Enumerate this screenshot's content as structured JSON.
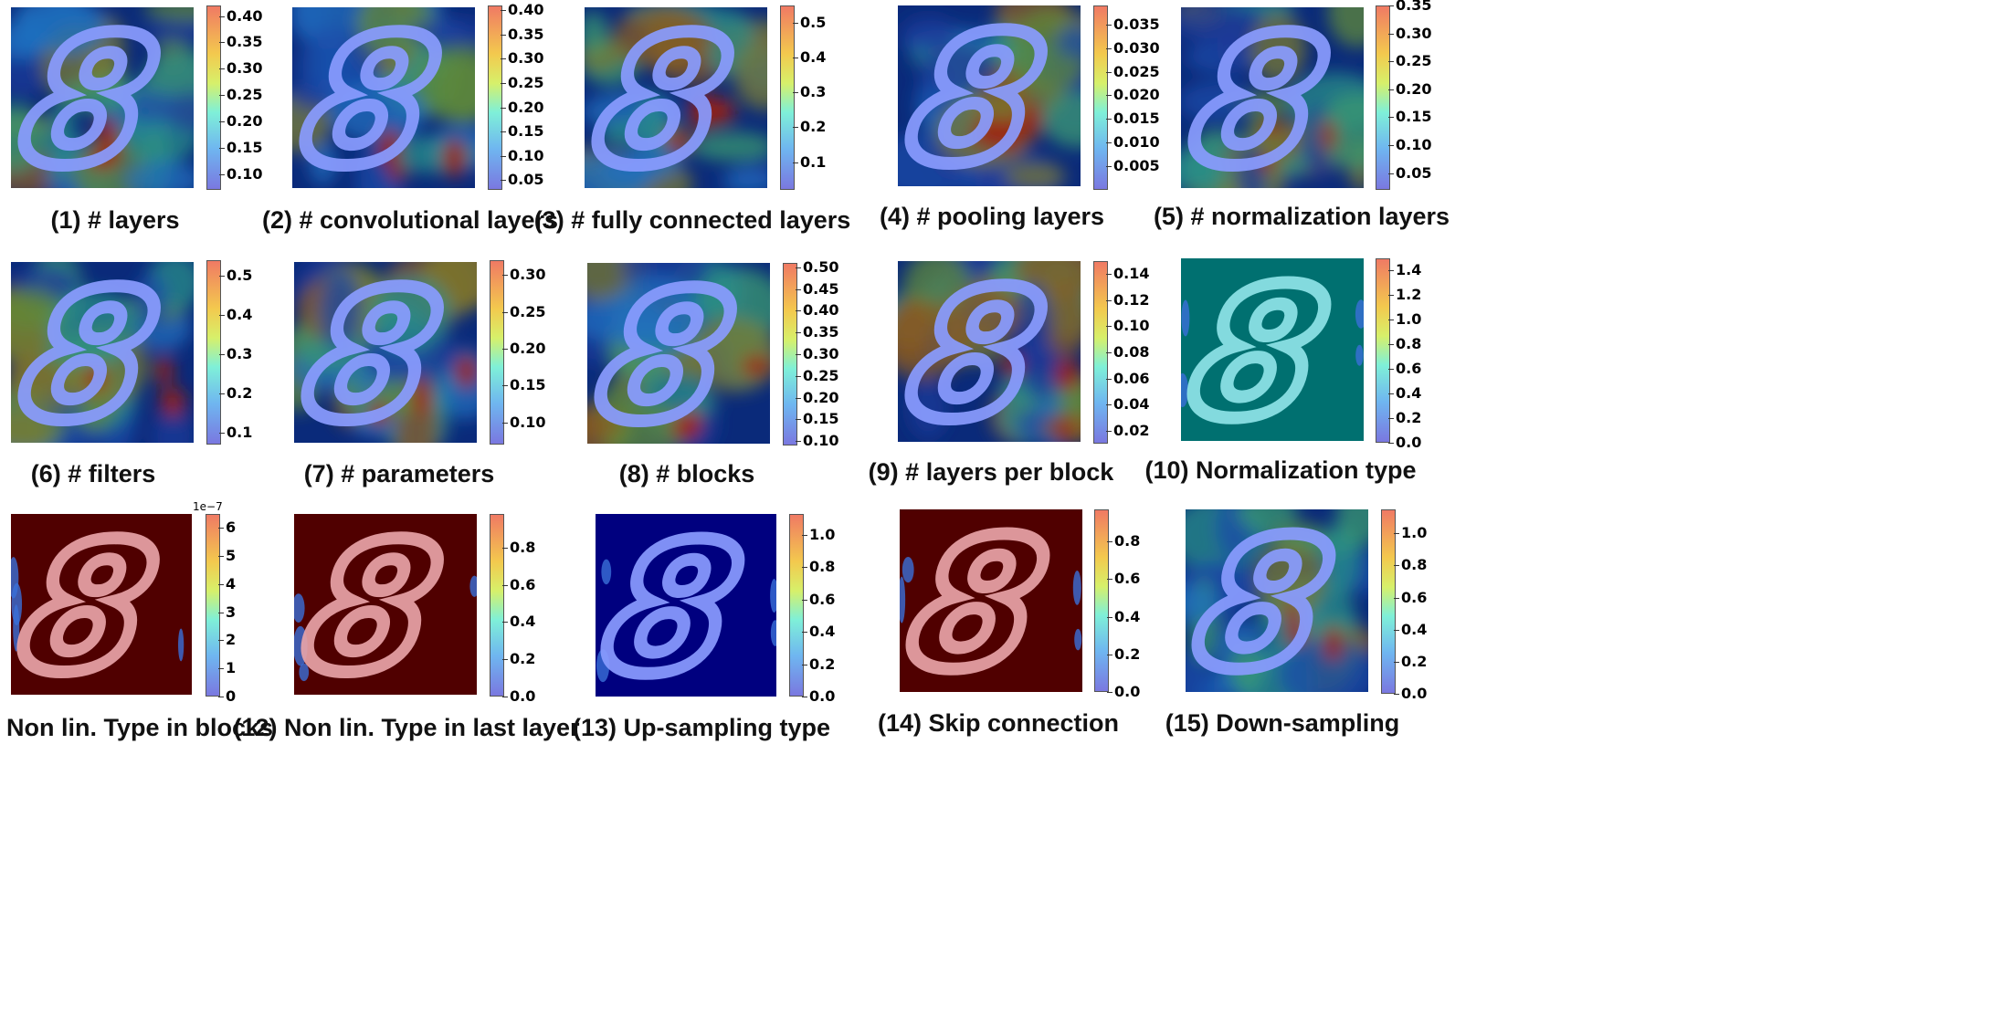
{
  "colors": {
    "jet_dark_blue": "#00007f",
    "jet_teal": "#007070",
    "jet_dark_red": "#500000",
    "digit_overlay_blue": "#8a9cff",
    "digit_overlay_pink": "#e8a3a8",
    "colorbar_stops": [
      "#7a78e0",
      "#6fb6f0",
      "#7ff0d8",
      "#d7f06a",
      "#f3c94e",
      "#f07a64"
    ]
  },
  "panels": [
    {
      "caption": "(1) # layers",
      "ticks": [
        "0.40",
        "0.35",
        "0.30",
        "0.25",
        "0.20",
        "0.15",
        "0.10"
      ],
      "range": [
        0.07,
        0.42
      ],
      "background": "jet-mixed",
      "digit": "blue"
    },
    {
      "caption": "(2) # convolutional layers",
      "ticks": [
        "0.40",
        "0.35",
        "0.30",
        "0.25",
        "0.20",
        "0.15",
        "0.10",
        "0.05"
      ],
      "range": [
        0.03,
        0.41
      ],
      "background": "jet-mixed",
      "digit": "blue"
    },
    {
      "caption": "(3) # fully connected layers",
      "ticks": [
        "0.5",
        "0.4",
        "0.3",
        "0.2",
        "0.1"
      ],
      "range": [
        0.02,
        0.55
      ],
      "background": "jet-mixed",
      "digit": "blue"
    },
    {
      "caption": "(4) # pooling layers",
      "ticks": [
        "0.035",
        "0.030",
        "0.025",
        "0.020",
        "0.015",
        "0.010",
        "0.005"
      ],
      "range": [
        0.0,
        0.039
      ],
      "background": "jet-mixed",
      "digit": "blue"
    },
    {
      "caption": "(5) # normalization layers",
      "ticks": [
        "0.35",
        "0.30",
        "0.25",
        "0.20",
        "0.15",
        "0.10",
        "0.05"
      ],
      "range": [
        0.02,
        0.35
      ],
      "background": "jet-mixed",
      "digit": "blue"
    },
    {
      "caption": "(6) # filters",
      "ticks": [
        "0.5",
        "0.4",
        "0.3",
        "0.2",
        "0.1"
      ],
      "range": [
        0.07,
        0.54
      ],
      "background": "jet-mixed",
      "digit": "blue"
    },
    {
      "caption": "(7) # parameters",
      "ticks": [
        "0.30",
        "0.25",
        "0.20",
        "0.15",
        "0.10"
      ],
      "range": [
        0.07,
        0.32
      ],
      "background": "jet-mixed",
      "digit": "blue"
    },
    {
      "caption": "(8) # blocks",
      "ticks": [
        "0.50",
        "0.45",
        "0.40",
        "0.35",
        "0.30",
        "0.25",
        "0.20",
        "0.15",
        "0.10"
      ],
      "range": [
        0.09,
        0.51
      ],
      "background": "jet-mixed",
      "digit": "blue"
    },
    {
      "caption": "(9) # layers per block",
      "ticks": [
        "0.14",
        "0.12",
        "0.10",
        "0.08",
        "0.06",
        "0.04",
        "0.02"
      ],
      "range": [
        0.01,
        0.15
      ],
      "background": "jet-mixed",
      "digit": "blue"
    },
    {
      "caption": "(10) Normalization type",
      "ticks": [
        "1.4",
        "1.2",
        "1.0",
        "0.8",
        "0.6",
        "0.4",
        "0.2",
        "0.0"
      ],
      "range": [
        0.0,
        1.5
      ],
      "background": "teal",
      "digit": "cyan"
    },
    {
      "caption": "(11) Non lin. Type in blocks",
      "ticks": [
        "6",
        "5",
        "4",
        "3",
        "2",
        "1",
        "0"
      ],
      "range": [
        0,
        6.5
      ],
      "scale_label": "1e−7",
      "background": "dark-red",
      "digit": "pink"
    },
    {
      "caption": "(12) Non lin. Type in last layer",
      "ticks": [
        "0.8",
        "0.6",
        "0.4",
        "0.2",
        "0.0"
      ],
      "range": [
        0.0,
        0.98
      ],
      "background": "dark-red",
      "digit": "pink"
    },
    {
      "caption": "(13) Up-sampling type",
      "ticks": [
        "1.0",
        "0.8",
        "0.6",
        "0.4",
        "0.2",
        "0.0"
      ],
      "range": [
        0.0,
        1.13
      ],
      "background": "dark-blue",
      "digit": "blue"
    },
    {
      "caption": "(14) Skip connection",
      "ticks": [
        "0.8",
        "0.6",
        "0.4",
        "0.2",
        "0.0"
      ],
      "range": [
        0.0,
        0.97
      ],
      "background": "dark-red",
      "digit": "pink"
    },
    {
      "caption": "(15) Down-sampling",
      "ticks": [
        "1.0",
        "0.8",
        "0.6",
        "0.4",
        "0.2",
        "0.0"
      ],
      "range": [
        0.0,
        1.15
      ],
      "background": "jet-mixed",
      "digit": "blue"
    }
  ]
}
